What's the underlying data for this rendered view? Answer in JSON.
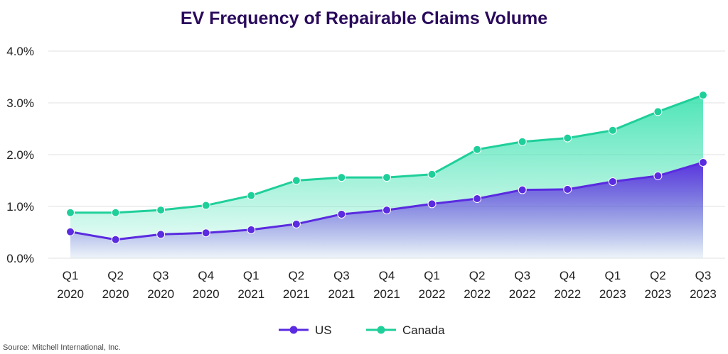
{
  "chart_data": {
    "type": "area",
    "title": "EV Frequency of Repairable Claims Volume",
    "categories": [
      [
        "Q1",
        "2020"
      ],
      [
        "Q2",
        "2020"
      ],
      [
        "Q3",
        "2020"
      ],
      [
        "Q4",
        "2020"
      ],
      [
        "Q1",
        "2021"
      ],
      [
        "Q2",
        "2021"
      ],
      [
        "Q3",
        "2021"
      ],
      [
        "Q4",
        "2021"
      ],
      [
        "Q1",
        "2022"
      ],
      [
        "Q2",
        "2022"
      ],
      [
        "Q3",
        "2022"
      ],
      [
        "Q4",
        "2022"
      ],
      [
        "Q1",
        "2023"
      ],
      [
        "Q2",
        "2023"
      ],
      [
        "Q3",
        "2023"
      ]
    ],
    "series": [
      {
        "name": "US",
        "color": "#5a2be0",
        "values": [
          0.51,
          0.36,
          0.46,
          0.49,
          0.55,
          0.66,
          0.85,
          0.93,
          1.05,
          1.15,
          1.32,
          1.33,
          1.48,
          1.59,
          1.85
        ]
      },
      {
        "name": "Canada",
        "color": "#1fcf9a",
        "values": [
          0.88,
          0.88,
          0.93,
          1.02,
          1.21,
          1.5,
          1.56,
          1.56,
          1.62,
          2.1,
          2.25,
          2.32,
          2.47,
          2.83,
          3.15
        ]
      }
    ],
    "yticks": [
      "0.0%",
      "1.0%",
      "2.0%",
      "3.0%",
      "4.0%"
    ],
    "ylim": [
      0,
      4
    ],
    "unit": "%",
    "grid": true,
    "legend_position": "bottom-center",
    "source": "Source: Mitchell International, Inc."
  }
}
